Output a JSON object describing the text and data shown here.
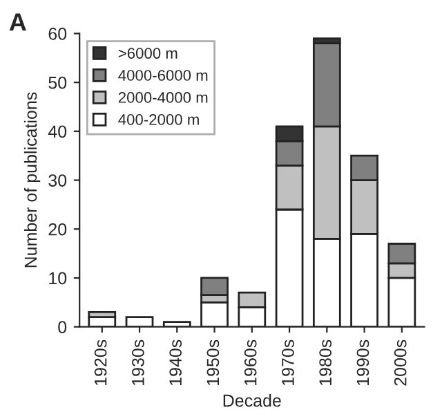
{
  "chart_data": {
    "type": "bar",
    "stacked": true,
    "xlabel": "Decade",
    "ylabel": "Number of publications",
    "annotations": [
      "A"
    ],
    "categories": [
      "1920s",
      "1930s",
      "1940s",
      "1950s",
      "1960s",
      "1970s",
      "1980s",
      "1990s",
      "2000s"
    ],
    "series": [
      {
        "name": "400-2000 m",
        "color": "#ffffff",
        "values": [
          2,
          2,
          1,
          5,
          4,
          24,
          18,
          19,
          10
        ]
      },
      {
        "name": "2000-4000 m",
        "color": "#c0c0c0",
        "values": [
          1,
          null,
          null,
          1.5,
          3,
          9,
          23,
          11,
          3
        ]
      },
      {
        "name": "4000-6000 m",
        "color": "#808080",
        "values": [
          null,
          null,
          null,
          3.5,
          null,
          5,
          17,
          5,
          4
        ]
      },
      {
        "name": ">6000 m",
        "color": "#333333",
        "values": [
          null,
          null,
          null,
          null,
          null,
          3,
          1,
          null,
          null
        ]
      }
    ],
    "ylim": [
      0,
      60
    ],
    "yticks": [
      0,
      10,
      20,
      30,
      40,
      50,
      60
    ],
    "grid": false,
    "legend": "top left"
  }
}
